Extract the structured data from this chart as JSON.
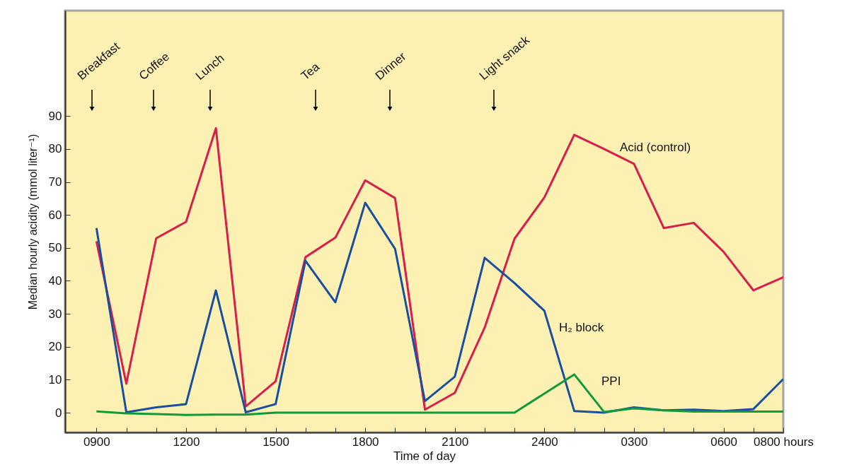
{
  "chart_data": {
    "type": "line",
    "xlabel": "Time of day",
    "ylabel": "Median hourly acidity (mmol liter⁻¹)",
    "categories": [
      "0900",
      null,
      null,
      "1200",
      null,
      null,
      "1500",
      null,
      null,
      "1800",
      null,
      null,
      "2100",
      null,
      null,
      "2400",
      null,
      null,
      "0300",
      null,
      null,
      "0600",
      null,
      "0800 hours"
    ],
    "ylim": [
      -6,
      122
    ],
    "yticks": [
      0,
      10,
      20,
      30,
      40,
      50,
      60,
      70,
      80,
      90
    ],
    "grid": false,
    "marker": "none",
    "line_style": "solid",
    "series": [
      {
        "name": "Acid (control)",
        "color": "#d81e4a",
        "values": [
          52,
          8.8,
          52.9,
          57.9,
          86.3,
          1.9,
          9.5,
          47.2,
          53.1,
          70.5,
          65.1,
          0.9,
          6,
          25.8,
          52.8,
          65.3,
          84.3,
          80,
          75.5,
          56,
          57.6,
          48.8,
          37.1,
          41.1
        ]
      },
      {
        "name": "H₂ block",
        "color": "#1a4fa0",
        "values": [
          56,
          0.1,
          1.6,
          2.6,
          37.1,
          0.1,
          2.6,
          46.1,
          33.5,
          63.7,
          49.7,
          3.5,
          10.9,
          47,
          39.3,
          30.9,
          0.5,
          0,
          1.6,
          0.7,
          0.9,
          0.5,
          1.1,
          10.2
        ]
      },
      {
        "name": "PPI",
        "color": "#119a3c",
        "values": [
          0.4,
          -0.2,
          -0.4,
          -0.7,
          -0.6,
          -0.6,
          0,
          0,
          0,
          0,
          0,
          0,
          0,
          0,
          0,
          5.8,
          11.6,
          0.2,
          1.3,
          0.7,
          0.3,
          0.3,
          0.3,
          0.3
        ]
      }
    ],
    "annotations": [
      "Breakfast",
      "Coffee",
      "Lunch",
      "Tea",
      "Dinner",
      "Light snack"
    ]
  }
}
